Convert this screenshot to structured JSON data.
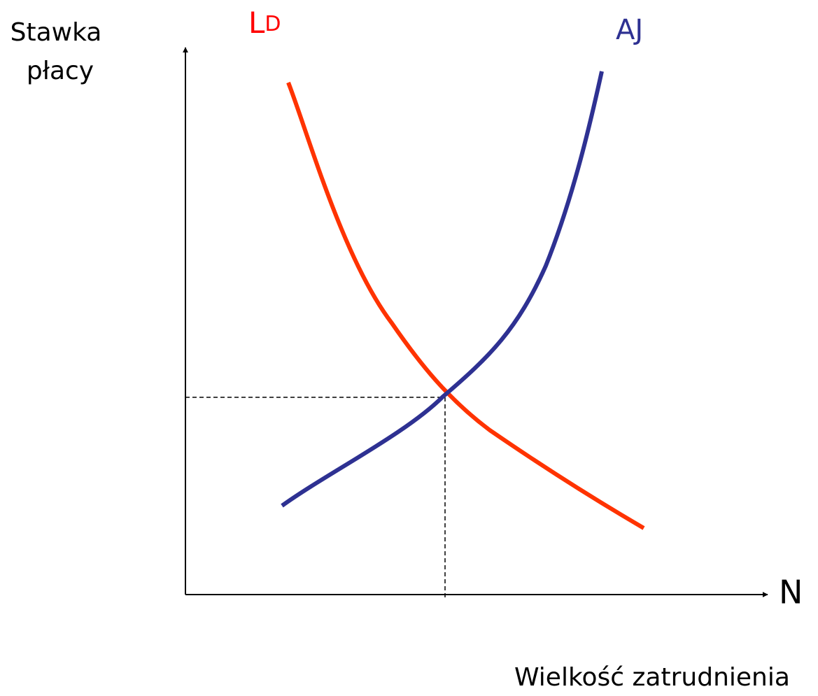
{
  "y_axis": {
    "label_lines": [
      "Stawka",
      "płacy"
    ]
  },
  "x_axis": {
    "symbol": "N",
    "label": "Wielkość zatrudnienia"
  },
  "curves": [
    {
      "label_main": "L",
      "label_sub": "D"
    },
    {
      "label": "AJ"
    }
  ]
}
